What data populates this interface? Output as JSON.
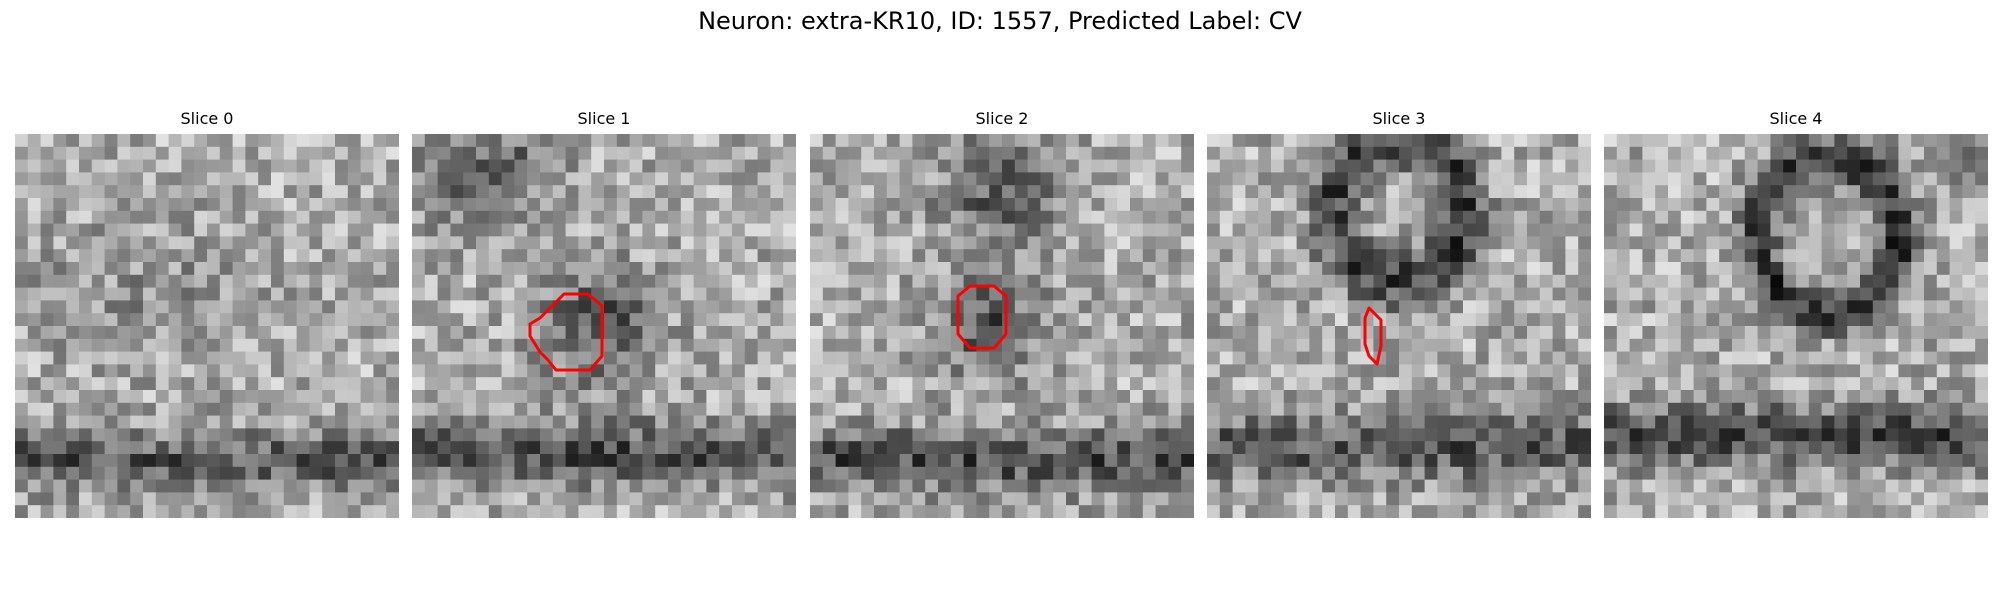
{
  "figure": {
    "title": "Neuron: extra-KR10, ID: 1557, Predicted Label: CV"
  },
  "panels": [
    {
      "title": "Slice 0",
      "has_contour": false
    },
    {
      "title": "Slice 1",
      "has_contour": true
    },
    {
      "title": "Slice 2",
      "has_contour": true
    },
    {
      "title": "Slice 3",
      "has_contour": true
    },
    {
      "title": "Slice 4",
      "has_contour": false
    }
  ],
  "colors": {
    "contour": "#ff0000",
    "background": "#ffffff",
    "colormap": "gray"
  }
}
